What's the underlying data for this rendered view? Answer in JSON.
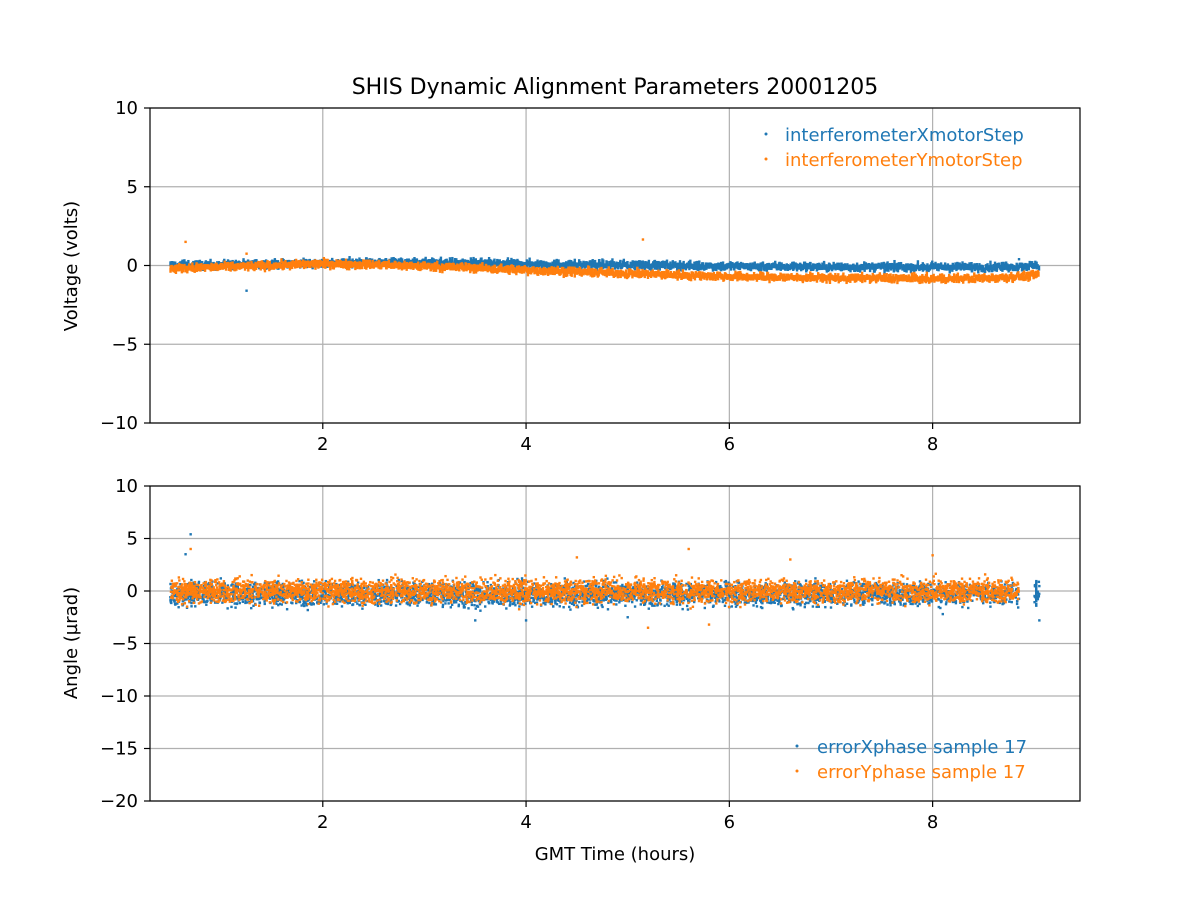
{
  "figure": {
    "title": "SHIS Dynamic Alignment Parameters 20001205"
  },
  "chart_data": [
    {
      "type": "scatter",
      "xlabel": "",
      "ylabel": "Voltage (volts)",
      "xlim": [
        0.3,
        9.45
      ],
      "ylim": [
        -10,
        10
      ],
      "xticks": [
        2,
        4,
        6,
        8
      ],
      "yticks": [
        10,
        5,
        0,
        -5,
        -10
      ],
      "ytick_labels": [
        "10",
        "5",
        "0",
        "−5",
        "−10"
      ],
      "grid": true,
      "legend_position": "top-right",
      "series": [
        {
          "name": "interferometerXmotorStep",
          "color": "#1f77b4",
          "x": [
            0.5,
            1.0,
            1.5,
            2.0,
            2.5,
            3.0,
            3.5,
            4.0,
            4.5,
            5.0,
            5.5,
            6.0,
            6.5,
            7.0,
            7.5,
            8.0,
            8.5,
            8.85,
            9.05
          ],
          "y": [
            0.0,
            0.05,
            0.1,
            0.15,
            0.2,
            0.2,
            0.15,
            0.1,
            0.05,
            0.05,
            0.0,
            -0.05,
            -0.05,
            -0.1,
            -0.1,
            -0.1,
            -0.1,
            -0.05,
            0.0
          ],
          "outliers": [
            [
              1.25,
              -1.6
            ],
            [
              0.62,
              0.3
            ],
            [
              8.85,
              0.4
            ]
          ]
        },
        {
          "name": "interferometerYmotorStep",
          "color": "#ff7f0e",
          "x": [
            0.5,
            1.0,
            1.5,
            2.0,
            2.5,
            3.0,
            3.5,
            4.0,
            4.5,
            5.0,
            5.5,
            6.0,
            6.5,
            7.0,
            7.5,
            8.0,
            8.5,
            8.85,
            9.05
          ],
          "y": [
            -0.2,
            -0.1,
            0.0,
            0.1,
            0.05,
            -0.05,
            -0.15,
            -0.3,
            -0.4,
            -0.5,
            -0.6,
            -0.7,
            -0.75,
            -0.8,
            -0.8,
            -0.85,
            -0.8,
            -0.7,
            -0.6
          ],
          "outliers": [
            [
              0.65,
              1.5
            ],
            [
              1.25,
              0.75
            ],
            [
              5.15,
              1.65
            ]
          ]
        }
      ]
    },
    {
      "type": "scatter",
      "xlabel": "GMT Time (hours)",
      "ylabel": "Angle (µrad)",
      "xlim": [
        0.3,
        9.45
      ],
      "ylim": [
        -20,
        10
      ],
      "xticks": [
        2,
        4,
        6,
        8
      ],
      "yticks": [
        10,
        5,
        0,
        -5,
        -10,
        -15,
        -20
      ],
      "ytick_labels": [
        "10",
        "5",
        "0",
        "−5",
        "−10",
        "−15",
        "−20"
      ],
      "grid": true,
      "legend_position": "bottom-right",
      "series": [
        {
          "name": "errorXphase sample 17",
          "color": "#1f77b4",
          "x_range": [
            0.5,
            9.05
          ],
          "center": -0.3,
          "band": [
            -2.0,
            1.2
          ],
          "outliers": [
            [
              0.7,
              5.4
            ],
            [
              0.65,
              3.5
            ],
            [
              3.5,
              -2.8
            ],
            [
              4.0,
              -2.8
            ],
            [
              5.0,
              -2.5
            ],
            [
              8.1,
              -2.2
            ],
            [
              9.05,
              -2.8
            ]
          ]
        },
        {
          "name": "errorYphase sample 17",
          "color": "#ff7f0e",
          "x_range": [
            0.5,
            8.85
          ],
          "center": 0.0,
          "band": [
            -2.0,
            2.0
          ],
          "outliers": [
            [
              0.7,
              4.0
            ],
            [
              5.6,
              4.0
            ],
            [
              8.0,
              3.4
            ],
            [
              4.5,
              3.2
            ],
            [
              5.2,
              -3.5
            ],
            [
              5.8,
              -3.2
            ],
            [
              6.6,
              3.0
            ]
          ]
        }
      ]
    }
  ]
}
